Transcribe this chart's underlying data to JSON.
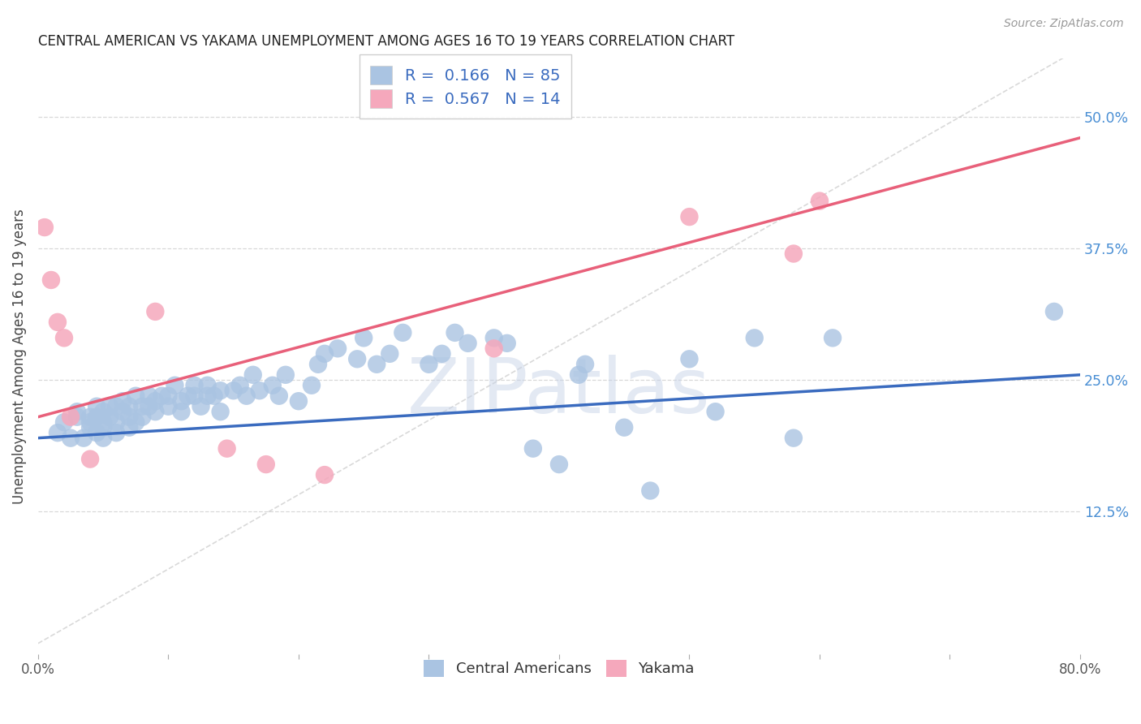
{
  "title": "CENTRAL AMERICAN VS YAKAMA UNEMPLOYMENT AMONG AGES 16 TO 19 YEARS CORRELATION CHART",
  "source": "Source: ZipAtlas.com",
  "ylabel": "Unemployment Among Ages 16 to 19 years",
  "xlim": [
    0.0,
    0.8
  ],
  "ylim": [
    0.0,
    0.55
  ],
  "yticks": [
    0.125,
    0.25,
    0.375,
    0.5
  ],
  "ytick_labels": [
    "12.5%",
    "25.0%",
    "37.5%",
    "50.0%"
  ],
  "xticks": [
    0.0,
    0.1,
    0.2,
    0.3,
    0.4,
    0.5,
    0.6,
    0.7,
    0.8
  ],
  "xtick_labels": [
    "0.0%",
    "",
    "",
    "",
    "",
    "",
    "",
    "",
    "80.0%"
  ],
  "R_blue": 0.166,
  "N_blue": 85,
  "R_pink": 0.567,
  "N_pink": 14,
  "blue_color": "#aac4e2",
  "pink_color": "#f5a8bc",
  "blue_line_color": "#3a6bbf",
  "pink_line_color": "#e8607a",
  "diag_line_color": "#c0c0c0",
  "background_color": "#ffffff",
  "grid_color": "#d8d8d8",
  "title_color": "#222222",
  "axis_label_color": "#444444",
  "right_tick_color": "#4a8fd4",
  "legend_text_color": "#4a8fd4",
  "legend_rn_color": "#3a6bbf",
  "watermark": "ZIPatlas",
  "watermark_color": "#c8d4e8",
  "blue_x": [
    0.015,
    0.02,
    0.025,
    0.03,
    0.03,
    0.035,
    0.04,
    0.04,
    0.04,
    0.045,
    0.045,
    0.045,
    0.05,
    0.05,
    0.05,
    0.05,
    0.055,
    0.055,
    0.06,
    0.06,
    0.06,
    0.065,
    0.065,
    0.07,
    0.07,
    0.07,
    0.075,
    0.075,
    0.08,
    0.08,
    0.085,
    0.085,
    0.09,
    0.09,
    0.095,
    0.1,
    0.1,
    0.105,
    0.11,
    0.11,
    0.115,
    0.12,
    0.12,
    0.125,
    0.13,
    0.13,
    0.135,
    0.14,
    0.14,
    0.15,
    0.155,
    0.16,
    0.165,
    0.17,
    0.18,
    0.185,
    0.19,
    0.2,
    0.21,
    0.215,
    0.22,
    0.23,
    0.245,
    0.25,
    0.26,
    0.27,
    0.28,
    0.3,
    0.31,
    0.32,
    0.33,
    0.35,
    0.36,
    0.38,
    0.4,
    0.415,
    0.42,
    0.45,
    0.47,
    0.5,
    0.52,
    0.55,
    0.58,
    0.61,
    0.78
  ],
  "blue_y": [
    0.2,
    0.21,
    0.195,
    0.215,
    0.22,
    0.195,
    0.205,
    0.215,
    0.21,
    0.2,
    0.215,
    0.225,
    0.195,
    0.205,
    0.21,
    0.22,
    0.215,
    0.225,
    0.2,
    0.21,
    0.225,
    0.22,
    0.23,
    0.205,
    0.215,
    0.225,
    0.21,
    0.235,
    0.215,
    0.225,
    0.225,
    0.235,
    0.22,
    0.23,
    0.235,
    0.225,
    0.235,
    0.245,
    0.22,
    0.23,
    0.235,
    0.235,
    0.245,
    0.225,
    0.235,
    0.245,
    0.235,
    0.24,
    0.22,
    0.24,
    0.245,
    0.235,
    0.255,
    0.24,
    0.245,
    0.235,
    0.255,
    0.23,
    0.245,
    0.265,
    0.275,
    0.28,
    0.27,
    0.29,
    0.265,
    0.275,
    0.295,
    0.265,
    0.275,
    0.295,
    0.285,
    0.29,
    0.285,
    0.185,
    0.17,
    0.255,
    0.265,
    0.205,
    0.145,
    0.27,
    0.22,
    0.29,
    0.195,
    0.29,
    0.315
  ],
  "pink_x": [
    0.005,
    0.01,
    0.015,
    0.02,
    0.025,
    0.04,
    0.09,
    0.145,
    0.175,
    0.22,
    0.35,
    0.5,
    0.58,
    0.6
  ],
  "pink_y": [
    0.395,
    0.345,
    0.305,
    0.29,
    0.215,
    0.175,
    0.315,
    0.185,
    0.17,
    0.16,
    0.28,
    0.405,
    0.37,
    0.42
  ],
  "blue_line_x0": 0.0,
  "blue_line_y0": 0.195,
  "blue_line_x1": 0.8,
  "blue_line_y1": 0.255,
  "pink_line_x0": 0.0,
  "pink_line_y0": 0.215,
  "pink_line_x1": 0.8,
  "pink_line_y1": 0.48
}
